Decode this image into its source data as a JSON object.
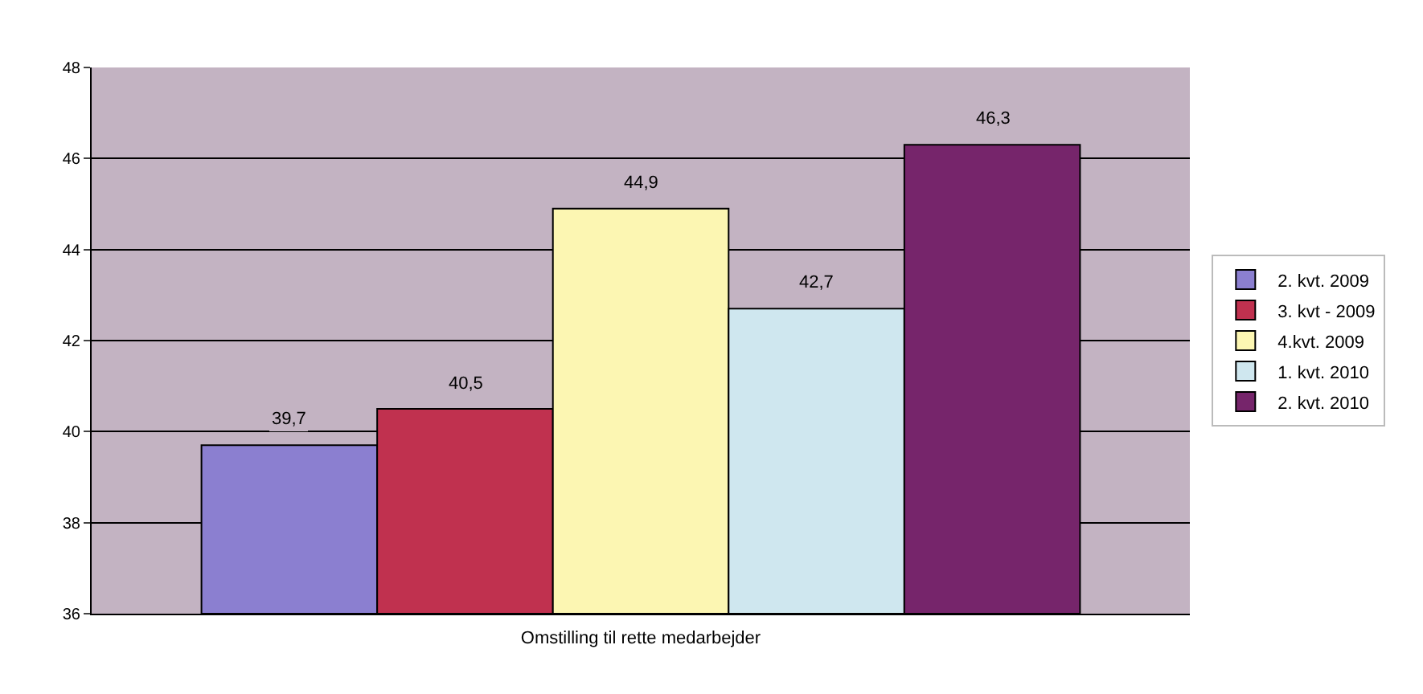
{
  "chart_data": {
    "type": "bar",
    "xlabel": "Omstilling til rette medarbejder",
    "categories": [
      null
    ],
    "series": [
      {
        "name": "2. kvt. 2009",
        "color": "#8b7fd0",
        "values": [
          39.7
        ],
        "value_labels": [
          "39,7"
        ]
      },
      {
        "name": "3. kvt - 2009",
        "color": "#c0314f",
        "values": [
          40.5
        ],
        "value_labels": [
          "40,5"
        ]
      },
      {
        "name": "4.kvt. 2009",
        "color": "#fcf6b2",
        "values": [
          44.9
        ],
        "value_labels": [
          "44,9"
        ]
      },
      {
        "name": "1. kvt. 2010",
        "color": "#cfe7ef",
        "values": [
          42.7
        ],
        "value_labels": [
          "42,7"
        ]
      },
      {
        "name": "2. kvt. 2010",
        "color": "#76256b",
        "values": [
          46.3
        ],
        "value_labels": [
          "46,3"
        ]
      }
    ],
    "ylim": [
      36,
      48
    ],
    "yticks": [
      36,
      38,
      40,
      42,
      44,
      46,
      48
    ],
    "grid": "y",
    "legend": "right"
  }
}
